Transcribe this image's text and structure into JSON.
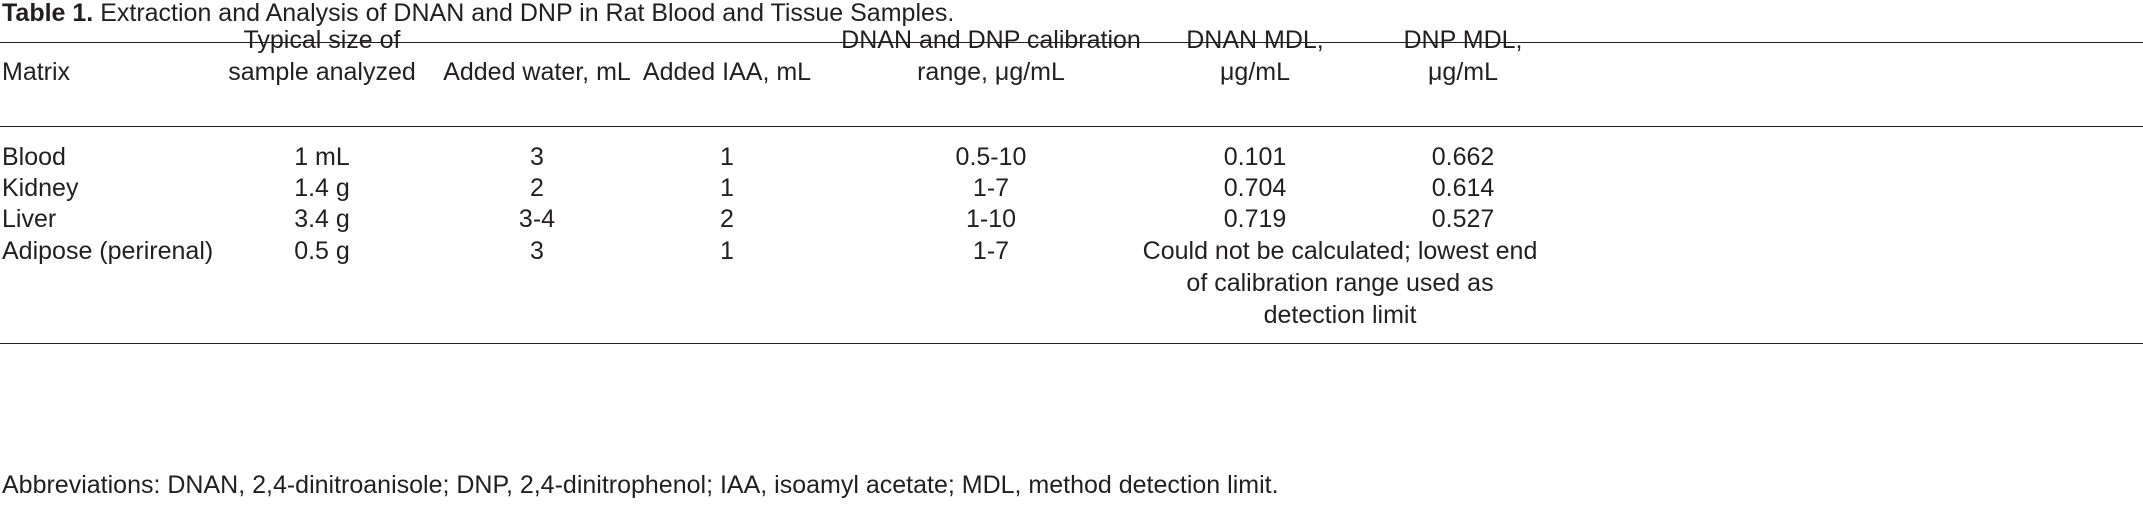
{
  "table": {
    "caption_label": "Table 1.",
    "caption_text": "Extraction and Analysis of DNAN and DNP in Rat Blood and Tissue Samples.",
    "header": [
      [
        "Matrix"
      ],
      [
        "Typical size of",
        "sample analyzed"
      ],
      [
        "Added water, mL"
      ],
      [
        "Added IAA, mL"
      ],
      [
        "DNAN and DNP calibration",
        "range, μg/mL"
      ],
      [
        "DNAN MDL,",
        "μg/mL"
      ],
      [
        "DNP MDL,",
        "μg/mL"
      ]
    ],
    "rows": [
      [
        "Blood",
        "1 mL",
        "3",
        "1",
        "0.5-10",
        "0.101",
        "0.662"
      ],
      [
        "Kidney",
        "1.4 g",
        "2",
        "1",
        "1-7",
        "0.704",
        "0.614"
      ],
      [
        "Liver",
        "3.4 g",
        "3-4",
        "2",
        "1-10",
        "0.719",
        "0.527"
      ],
      [
        "Adipose (perirenal)",
        "0.5 g",
        "3",
        "1",
        "1-7",
        [
          "Could not be calculated; lowest end",
          "of calibration range used as",
          "detection limit"
        ]
      ]
    ],
    "footnote": "Abbreviations: DNAN, 2,4-dinitroanisole; DNP, 2,4-dinitrophenol; IAA, isoamyl acetate; MDL, method detection limit."
  }
}
